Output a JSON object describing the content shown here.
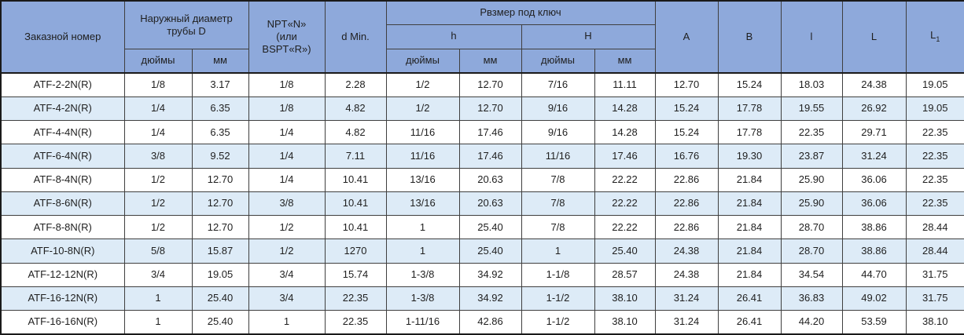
{
  "table": {
    "colors": {
      "header_bg": "#8EA9DB",
      "row_alt_bg": "#DDEBF7",
      "row_bg": "#FFFFFF",
      "border": "#3F3F3F",
      "text": "#1F1F1F"
    },
    "header": {
      "order_number": "Заказной номер",
      "outer_diameter": "Наружный диаметр трубы D",
      "npt_lines": [
        "NPT«N»",
        "(или",
        "BSPT«R»)"
      ],
      "d_min": "d Min.",
      "wrench_size": "Рвзмер под ключ",
      "h_lower": "h",
      "h_upper": "H",
      "inches": "дюймы",
      "mm": "мм",
      "col_A": "A",
      "col_B": "B",
      "col_l": "l",
      "col_L": "L",
      "col_L1_base": "L",
      "col_L1_sub": "1"
    },
    "rows": [
      [
        "ATF-2-2N(R)",
        "1/8",
        "3.17",
        "1/8",
        "2.28",
        "1/2",
        "12.70",
        "7/16",
        "11.11",
        "12.70",
        "15.24",
        "18.03",
        "24.38",
        "19.05"
      ],
      [
        "ATF-4-2N(R)",
        "1/4",
        "6.35",
        "1/8",
        "4.82",
        "1/2",
        "12.70",
        "9/16",
        "14.28",
        "15.24",
        "17.78",
        "19.55",
        "26.92",
        "19.05"
      ],
      [
        "ATF-4-4N(R)",
        "1/4",
        "6.35",
        "1/4",
        "4.82",
        "11/16",
        "17.46",
        "9/16",
        "14.28",
        "15.24",
        "17.78",
        "22.35",
        "29.71",
        "22.35"
      ],
      [
        "ATF-6-4N(R)",
        "3/8",
        "9.52",
        "1/4",
        "7.11",
        "11/16",
        "17.46",
        "11/16",
        "17.46",
        "16.76",
        "19.30",
        "23.87",
        "31.24",
        "22.35"
      ],
      [
        "ATF-8-4N(R)",
        "1/2",
        "12.70",
        "1/4",
        "10.41",
        "13/16",
        "20.63",
        "7/8",
        "22.22",
        "22.86",
        "21.84",
        "25.90",
        "36.06",
        "22.35"
      ],
      [
        "ATF-8-6N(R)",
        "1/2",
        "12.70",
        "3/8",
        "10.41",
        "13/16",
        "20.63",
        "7/8",
        "22.22",
        "22.86",
        "21.84",
        "25.90",
        "36.06",
        "22.35"
      ],
      [
        "ATF-8-8N(R)",
        "1/2",
        "12.70",
        "1/2",
        "10.41",
        "1",
        "25.40",
        "7/8",
        "22.22",
        "22.86",
        "21.84",
        "28.70",
        "38.86",
        "28.44"
      ],
      [
        "ATF-10-8N(R)",
        "5/8",
        "15.87",
        "1/2",
        "1270",
        "1",
        "25.40",
        "1",
        "25.40",
        "24.38",
        "21.84",
        "28.70",
        "38.86",
        "28.44"
      ],
      [
        "ATF-12-12N(R)",
        "3/4",
        "19.05",
        "3/4",
        "15.74",
        "1-3/8",
        "34.92",
        "1-1/8",
        "28.57",
        "24.38",
        "21.84",
        "34.54",
        "44.70",
        "31.75"
      ],
      [
        "ATF-16-12N(R)",
        "1",
        "25.40",
        "3/4",
        "22.35",
        "1-3/8",
        "34.92",
        "1-1/2",
        "38.10",
        "31.24",
        "26.41",
        "36.83",
        "49.02",
        "31.75"
      ],
      [
        "ATF-16-16N(R)",
        "1",
        "25.40",
        "1",
        "22.35",
        "1-11/16",
        "42.86",
        "1-1/2",
        "38.10",
        "31.24",
        "26.41",
        "44.20",
        "53.59",
        "38.10"
      ]
    ]
  }
}
